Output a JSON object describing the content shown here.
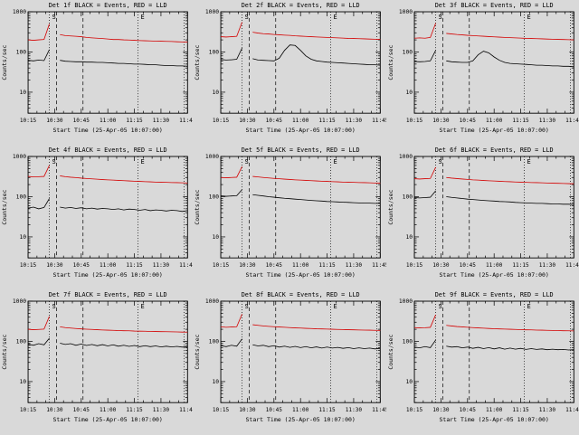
{
  "figure": {
    "background": "#d9d9d9"
  },
  "chart_data": {
    "type": "line",
    "layout": "3x3-grid",
    "yscale": "log",
    "grid": false,
    "ylim": [
      3,
      1000
    ],
    "y_log_ticks": [
      10,
      100,
      1000
    ],
    "xlabel": "Start Time (25-Apr-05 10:07:00)",
    "ylabel": "Counts/sec",
    "legend_note": "BLACK = Events, RED = LLD",
    "colors": {
      "events": "#000000",
      "lld": "#d40000"
    },
    "x_minutes": [
      0,
      3,
      6,
      9,
      12,
      15,
      18,
      21,
      24,
      27,
      30,
      33,
      36,
      39,
      42,
      45,
      48,
      51,
      54,
      57,
      60,
      63,
      66,
      69,
      72,
      75,
      78,
      81,
      84,
      87,
      90
    ],
    "x_tick_minutes": [
      0,
      15,
      30,
      45,
      60,
      75,
      90
    ],
    "x_tick_labels": [
      "10:15",
      "10:30",
      "10:45",
      "11:00",
      "11:15",
      "11:30",
      "11:45"
    ],
    "x_minor_step": 5,
    "markers": [
      {
        "t": 12,
        "style": "dotted",
        "label": "S"
      },
      {
        "t": 16,
        "style": "dashed",
        "label": ""
      },
      {
        "t": 31,
        "style": "dashed",
        "label": ""
      },
      {
        "t": 62,
        "style": "dotted",
        "label": "E"
      },
      {
        "t": 88,
        "style": "dotted",
        "label": ""
      }
    ],
    "panels": [
      {
        "title": "Det 1f BLACK = Events, RED = LLD",
        "lld": [
          200,
          195,
          200,
          205,
          500,
          null,
          270,
          255,
          250,
          245,
          240,
          230,
          225,
          220,
          215,
          210,
          205,
          205,
          200,
          198,
          195,
          192,
          190,
          188,
          186,
          185,
          183,
          182,
          180,
          178,
          176
        ],
        "events": [
          62,
          60,
          63,
          61,
          115,
          null,
          62,
          59,
          58,
          57,
          57,
          56,
          56,
          55,
          55,
          54,
          53,
          52,
          52,
          51,
          50,
          50,
          49,
          48,
          48,
          47,
          46,
          46,
          45,
          45,
          44
        ]
      },
      {
        "title": "Det 2f BLACK = Events, RED = LLD",
        "lld": [
          240,
          235,
          240,
          245,
          550,
          null,
          310,
          295,
          285,
          280,
          272,
          268,
          262,
          258,
          252,
          248,
          244,
          240,
          236,
          233,
          230,
          227,
          224,
          221,
          218,
          216,
          214,
          212,
          210,
          208,
          206
        ],
        "events": [
          65,
          63,
          64,
          66,
          125,
          null,
          68,
          63,
          62,
          61,
          60,
          70,
          110,
          150,
          145,
          110,
          80,
          66,
          60,
          58,
          56,
          55,
          54,
          53,
          52,
          51,
          50,
          49,
          48,
          48,
          47
        ]
      },
      {
        "title": "Det 3f BLACK = Events, RED = LLD",
        "lld": [
          220,
          225,
          220,
          230,
          520,
          null,
          290,
          280,
          272,
          266,
          260,
          255,
          250,
          246,
          242,
          238,
          234,
          230,
          227,
          224,
          221,
          218,
          216,
          214,
          212,
          210,
          208,
          206,
          204,
          202,
          200
        ],
        "events": [
          58,
          57,
          58,
          60,
          110,
          null,
          60,
          57,
          56,
          55,
          55,
          60,
          85,
          105,
          95,
          75,
          62,
          55,
          52,
          51,
          50,
          49,
          48,
          47,
          47,
          46,
          45,
          45,
          44,
          44,
          43
        ]
      },
      {
        "title": "Det 4f BLACK = Events, RED = LLD",
        "lld": [
          320,
          310,
          315,
          320,
          600,
          null,
          330,
          315,
          305,
          298,
          290,
          284,
          278,
          272,
          267,
          262,
          258,
          254,
          250,
          246,
          243,
          240,
          237,
          234,
          231,
          229,
          227,
          225,
          223,
          221,
          219
        ],
        "events": [
          52,
          55,
          50,
          54,
          90,
          null,
          55,
          52,
          54,
          51,
          53,
          50,
          52,
          49,
          51,
          50,
          48,
          50,
          47,
          49,
          48,
          46,
          48,
          45,
          47,
          46,
          44,
          46,
          45,
          43,
          45
        ]
      },
      {
        "title": "Det 5f BLACK = Events, RED = LLD",
        "lld": [
          300,
          295,
          300,
          305,
          560,
          null,
          320,
          310,
          300,
          292,
          285,
          279,
          273,
          268,
          263,
          258,
          254,
          250,
          246,
          243,
          240,
          237,
          234,
          231,
          229,
          227,
          225,
          223,
          221,
          219,
          217
        ],
        "events": [
          105,
          102,
          104,
          106,
          150,
          null,
          112,
          108,
          104,
          100,
          97,
          94,
          91,
          89,
          87,
          85,
          83,
          81,
          79,
          78,
          76,
          75,
          74,
          73,
          72,
          71,
          70,
          69,
          69,
          68,
          68
        ]
      },
      {
        "title": "Det 6f BLACK = Events, RED = LLD",
        "lld": [
          280,
          275,
          280,
          285,
          540,
          null,
          300,
          290,
          282,
          275,
          269,
          263,
          258,
          253,
          249,
          245,
          241,
          238,
          235,
          232,
          229,
          227,
          225,
          223,
          221,
          219,
          217,
          215,
          213,
          211,
          210
        ],
        "events": [
          95,
          93,
          95,
          97,
          140,
          null,
          100,
          96,
          93,
          90,
          87,
          85,
          83,
          81,
          79,
          78,
          76,
          75,
          74,
          72,
          71,
          70,
          69,
          68,
          68,
          67,
          66,
          66,
          65,
          65,
          64
        ]
      },
      {
        "title": "Det 7f BLACK = Events, RED = LLD",
        "lld": [
          200,
          195,
          198,
          202,
          420,
          null,
          230,
          220,
          214,
          209,
          205,
          201,
          198,
          195,
          192,
          190,
          188,
          186,
          184,
          183,
          181,
          180,
          179,
          177,
          176,
          175,
          174,
          173,
          172,
          171,
          170
        ],
        "events": [
          85,
          80,
          88,
          82,
          120,
          null,
          90,
          84,
          88,
          80,
          86,
          79,
          84,
          78,
          83,
          77,
          82,
          76,
          80,
          75,
          79,
          74,
          78,
          74,
          77,
          73,
          76,
          73,
          75,
          72,
          74
        ]
      },
      {
        "title": "Det 8f BLACK = Events, RED = LLD",
        "lld": [
          230,
          225,
          228,
          232,
          480,
          null,
          260,
          250,
          243,
          237,
          232,
          228,
          224,
          220,
          217,
          214,
          211,
          209,
          206,
          204,
          202,
          200,
          198,
          197,
          195,
          194,
          192,
          191,
          190,
          188,
          187
        ],
        "events": [
          78,
          74,
          80,
          76,
          115,
          null,
          82,
          77,
          80,
          74,
          78,
          72,
          76,
          71,
          75,
          70,
          74,
          69,
          73,
          68,
          72,
          68,
          71,
          67,
          70,
          66,
          69,
          66,
          68,
          65,
          67
        ]
      },
      {
        "title": "Det 9f BLACK = Events, RED = LLD",
        "lld": [
          220,
          216,
          219,
          223,
          460,
          null,
          250,
          241,
          234,
          229,
          224,
          220,
          216,
          213,
          210,
          207,
          204,
          202,
          200,
          198,
          196,
          194,
          193,
          191,
          190,
          188,
          187,
          186,
          184,
          183,
          182
        ],
        "events": [
          72,
          69,
          74,
          70,
          108,
          null,
          76,
          72,
          74,
          69,
          72,
          67,
          71,
          66,
          70,
          65,
          69,
          64,
          68,
          64,
          67,
          63,
          66,
          63,
          65,
          62,
          64,
          62,
          63,
          61,
          62
        ]
      }
    ]
  }
}
